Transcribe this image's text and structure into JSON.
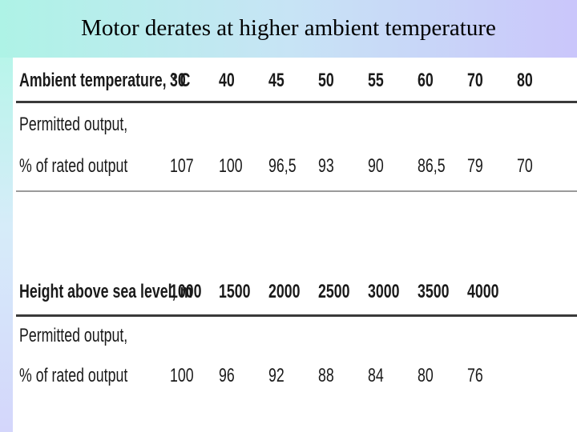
{
  "slide": {
    "title": "Motor derates at higher ambient temperature"
  },
  "table_temperature": {
    "header_label": "Ambient temperature, ° C",
    "header_values": [
      "30",
      "40",
      "45",
      "50",
      "55",
      "60",
      "70",
      "80"
    ],
    "row_label_line1": "Permitted output,",
    "row_label_line2": "% of rated output",
    "row_values": [
      "107",
      "100",
      "96,5",
      "93",
      "90",
      "86,5",
      "79",
      "70"
    ]
  },
  "table_altitude": {
    "header_label": "Height above sea level, m",
    "header_values": [
      "1000",
      "1500",
      "2000",
      "2500",
      "3000",
      "3500",
      "4000"
    ],
    "row_label_line1": "Permitted output,",
    "row_label_line2": "% of rated output",
    "row_values": [
      "100",
      "96",
      "92",
      "88",
      "84",
      "80",
      "76"
    ]
  }
}
